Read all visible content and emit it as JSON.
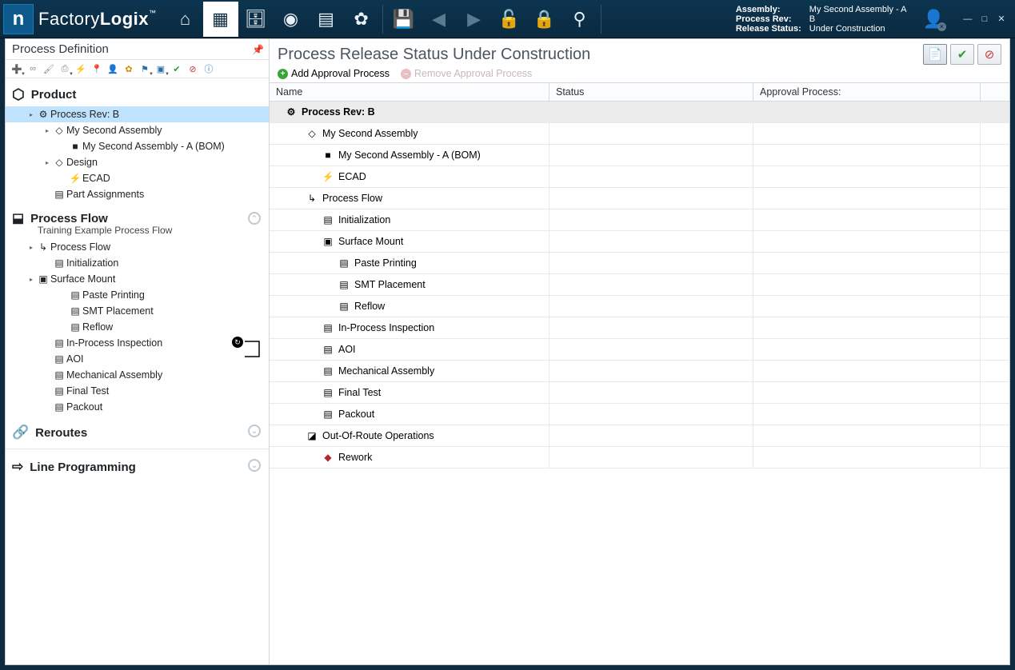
{
  "app": {
    "brand_a": "Factory",
    "brand_b": "Logix"
  },
  "topbar_icons": [
    {
      "name": "home-icon",
      "glyph": "⌂",
      "interact": true
    },
    {
      "name": "grid-edit-icon",
      "glyph": "▦",
      "interact": true,
      "active": true
    },
    {
      "name": "db-icon",
      "glyph": "🗄",
      "interact": true
    },
    {
      "name": "globe-icon",
      "glyph": "◉",
      "interact": true
    },
    {
      "name": "doc-icon",
      "glyph": "▤",
      "interact": true
    },
    {
      "name": "gear-icon",
      "glyph": "✿",
      "interact": true
    }
  ],
  "topbar_icons2": [
    {
      "name": "save-icon",
      "glyph": "💾",
      "interact": false
    },
    {
      "name": "back-icon",
      "glyph": "◀",
      "interact": false
    },
    {
      "name": "forward-icon",
      "glyph": "▶",
      "interact": false
    },
    {
      "name": "unlock-icon",
      "glyph": "🔓",
      "interact": false
    },
    {
      "name": "lock-icon",
      "glyph": "🔒",
      "interact": false
    },
    {
      "name": "search-user-icon",
      "glyph": "⚲",
      "interact": true
    }
  ],
  "info": {
    "assembly_k": "Assembly:",
    "assembly_v": "My Second Assembly - A",
    "rev_k": "Process Rev:",
    "rev_v": "B",
    "status_k": "Release Status:",
    "status_v": "Under Construction"
  },
  "left": {
    "title": "Process Definition",
    "mini_icons": [
      {
        "n": "add",
        "g": "➕",
        "c": "green",
        "dd": true
      },
      {
        "n": "link",
        "g": "∞",
        "c": "gray"
      },
      {
        "n": "paint",
        "g": "🖌",
        "c": "gray"
      },
      {
        "n": "print",
        "g": "⎙",
        "c": "gray",
        "dd": true
      },
      {
        "n": "bolt",
        "g": "⚡",
        "c": "green"
      },
      {
        "n": "pin",
        "g": "📍",
        "c": "red"
      },
      {
        "n": "person",
        "g": "👤",
        "c": "orange"
      },
      {
        "n": "gear",
        "g": "✿",
        "c": "orange"
      },
      {
        "n": "flag",
        "g": "⚑",
        "c": "blue",
        "dd": true
      },
      {
        "n": "box",
        "g": "▣",
        "c": "blue",
        "dd": true
      },
      {
        "n": "ok",
        "g": "✔",
        "c": "green"
      },
      {
        "n": "no",
        "g": "⊘",
        "c": "red"
      },
      {
        "n": "info",
        "g": "ⓘ",
        "c": "blue"
      }
    ],
    "sections": {
      "product": "Product",
      "flow": "Process Flow",
      "flow_sub": "Training Example Process Flow",
      "reroutes": "Reroutes",
      "lineprog": "Line Programming"
    },
    "product_tree": [
      {
        "ind": 26,
        "tog": "▸",
        "ico": "⚙",
        "txt": "Process Rev: B",
        "sel": true
      },
      {
        "ind": 46,
        "tog": "▸",
        "ico": "◇",
        "txt": "My Second Assembly"
      },
      {
        "ind": 66,
        "tog": "",
        "ico": "■",
        "txt": "My Second Assembly - A (BOM)"
      },
      {
        "ind": 46,
        "tog": "▸",
        "ico": "◇",
        "txt": "Design"
      },
      {
        "ind": 66,
        "tog": "",
        "ico": "⚡",
        "txt": "ECAD"
      },
      {
        "ind": 46,
        "tog": "",
        "ico": "▤",
        "txt": "Part Assignments"
      }
    ],
    "flow_tree": [
      {
        "ind": 26,
        "tog": "▸",
        "ico": "↳",
        "txt": "Process Flow"
      },
      {
        "ind": 46,
        "tog": "",
        "ico": "▤",
        "txt": "Initialization"
      },
      {
        "ind": 26,
        "tog": "▸",
        "ico": "▣",
        "txt": "Surface Mount"
      },
      {
        "ind": 66,
        "tog": "",
        "ico": "▤",
        "txt": "Paste Printing"
      },
      {
        "ind": 66,
        "tog": "",
        "ico": "▤",
        "txt": "SMT Placement"
      },
      {
        "ind": 66,
        "tog": "",
        "ico": "▤",
        "txt": "Reflow"
      },
      {
        "ind": 46,
        "tog": "",
        "ico": "▤",
        "txt": "In-Process Inspection",
        "loop": true
      },
      {
        "ind": 46,
        "tog": "",
        "ico": "▤",
        "txt": "AOI"
      },
      {
        "ind": 46,
        "tog": "",
        "ico": "▤",
        "txt": "Mechanical Assembly"
      },
      {
        "ind": 46,
        "tog": "",
        "ico": "▤",
        "txt": "Final Test"
      },
      {
        "ind": 46,
        "tog": "",
        "ico": "▤",
        "txt": "Packout"
      }
    ]
  },
  "right": {
    "title": "Process Release Status  Under Construction",
    "add": "Add Approval Process",
    "remove": "Remove Approval Process",
    "cols": {
      "name": "Name",
      "status": "Status",
      "ap": "Approval Process:"
    },
    "rows": [
      {
        "ind": 14,
        "ico": "⚙",
        "txt": "Process Rev: B",
        "hdr": true
      },
      {
        "ind": 40,
        "ico": "◇",
        "txt": "My Second Assembly"
      },
      {
        "ind": 60,
        "ico": "■",
        "txt": "My Second Assembly - A (BOM)"
      },
      {
        "ind": 60,
        "ico": "⚡",
        "txt": "ECAD"
      },
      {
        "ind": 40,
        "ico": "↳",
        "txt": "Process Flow"
      },
      {
        "ind": 60,
        "ico": "▤",
        "txt": "Initialization"
      },
      {
        "ind": 60,
        "ico": "▣",
        "txt": "Surface Mount"
      },
      {
        "ind": 80,
        "ico": "▤",
        "txt": "Paste Printing"
      },
      {
        "ind": 80,
        "ico": "▤",
        "txt": "SMT Placement"
      },
      {
        "ind": 80,
        "ico": "▤",
        "txt": "Reflow"
      },
      {
        "ind": 60,
        "ico": "▤",
        "txt": "In-Process Inspection"
      },
      {
        "ind": 60,
        "ico": "▤",
        "txt": "AOI"
      },
      {
        "ind": 60,
        "ico": "▤",
        "txt": "Mechanical Assembly"
      },
      {
        "ind": 60,
        "ico": "▤",
        "txt": "Final Test"
      },
      {
        "ind": 60,
        "ico": "▤",
        "txt": "Packout"
      },
      {
        "ind": 40,
        "ico": "◪",
        "txt": "Out-Of-Route Operations"
      },
      {
        "ind": 60,
        "ico": "◆",
        "txt": "Rework",
        "red": true
      }
    ]
  },
  "colors": {
    "menubar": "#0d3550",
    "menubar2": "#0a2a40",
    "frame": "#0d2a3f",
    "select": "#bfe2ff",
    "border": "#cfd6dc"
  }
}
